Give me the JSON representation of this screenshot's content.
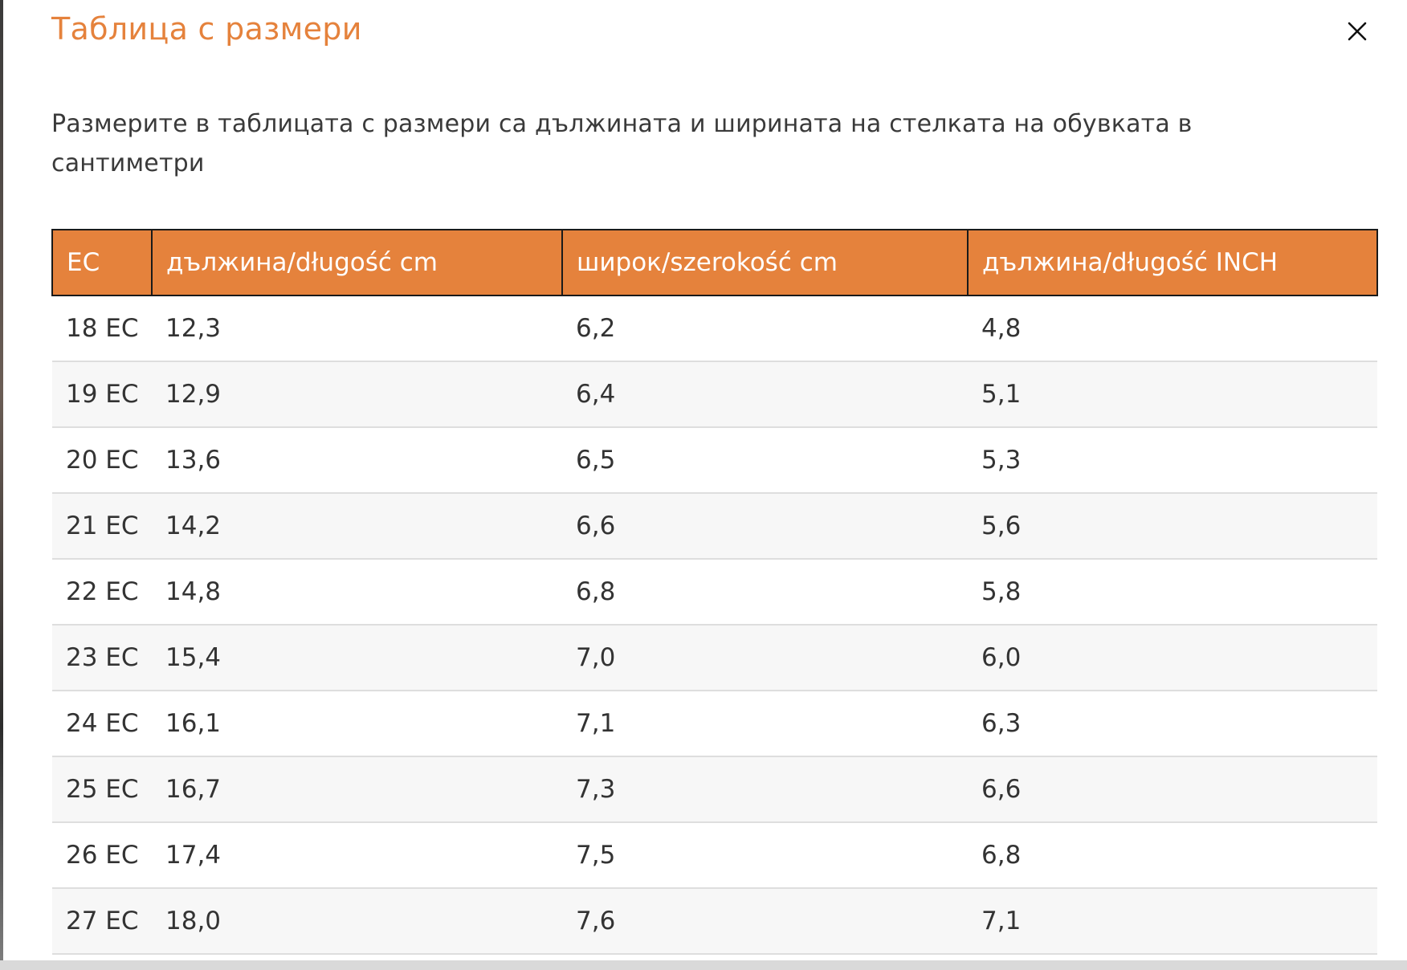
{
  "modal": {
    "title": "Таблица с размери",
    "close_icon": "close-icon",
    "description": "Размерите в таблицата с размери са дължината и ширината на стелката на обувката в сантиметри"
  },
  "table": {
    "headers": [
      "EC",
      "дължина/długość cm",
      "ширoк/szerokość cm",
      "дължина/długość INCH"
    ],
    "rows": [
      [
        "18 EC",
        "12,3",
        "6,2",
        "4,8"
      ],
      [
        "19 EC",
        "12,9",
        "6,4",
        "5,1"
      ],
      [
        "20 EC",
        "13,6",
        "6,5",
        "5,3"
      ],
      [
        "21 EC",
        "14,2",
        "6,6",
        "5,6"
      ],
      [
        "22 EC",
        "14,8",
        "6,8",
        "5,8"
      ],
      [
        "23 EC",
        "15,4",
        "7,0",
        "6,0"
      ],
      [
        "24 EC",
        "16,1",
        "7,1",
        "6,3"
      ],
      [
        "25 EC",
        "16,7",
        "7,3",
        "6,6"
      ],
      [
        "26 EC",
        "17,4",
        "7,5",
        "6,8"
      ],
      [
        "27 EC",
        "18,0",
        "7,6",
        "7,1"
      ]
    ]
  },
  "colors": {
    "accent": "#e5823c",
    "header_text": "#ffffff",
    "row_alt": "#f7f7f7",
    "row_divider": "#dedede"
  }
}
